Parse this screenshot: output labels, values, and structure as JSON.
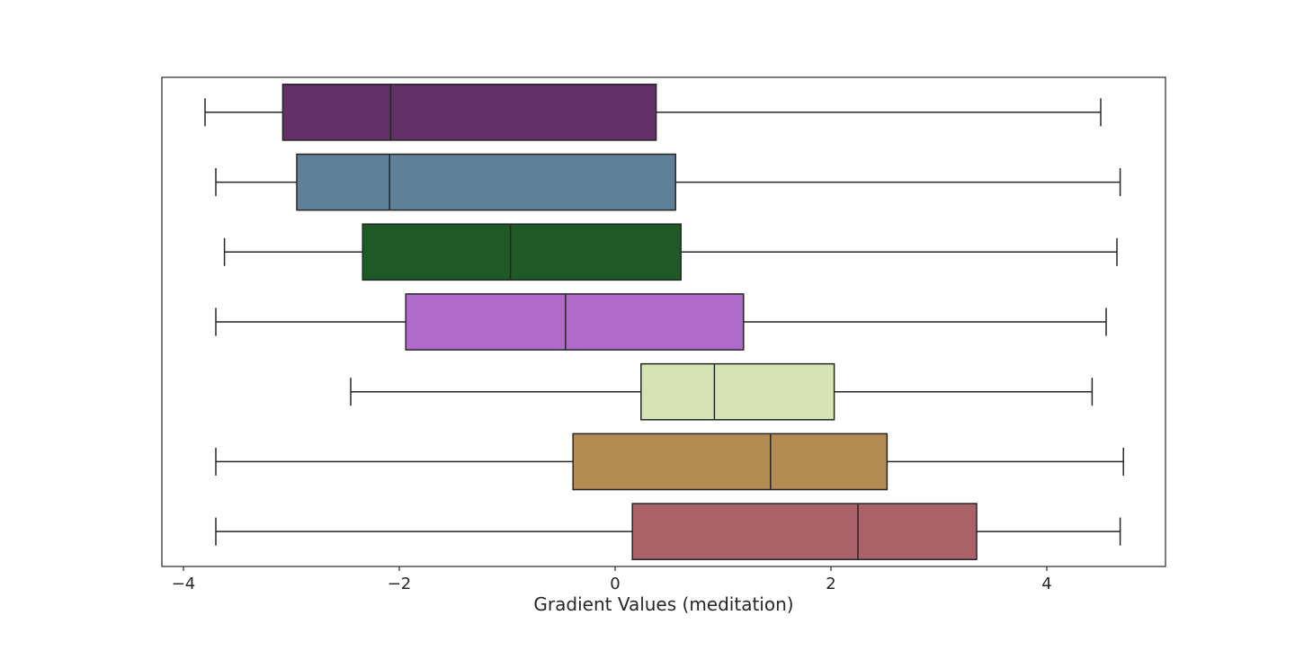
{
  "chart_data": {
    "type": "boxplot",
    "orientation": "horizontal",
    "xlabel": "Gradient Values (meditation)",
    "ylabel": "",
    "xlim": [
      -4.2,
      5.1
    ],
    "xticks": [
      -4,
      -2,
      0,
      2,
      4
    ],
    "xtick_labels": [
      "−4",
      "−2",
      "0",
      "2",
      "4"
    ],
    "grid": false,
    "boxes": [
      {
        "whisker_low": -3.8,
        "q1": -3.08,
        "median": -2.08,
        "q3": 0.38,
        "whisker_high": 4.5,
        "color": "#632f67"
      },
      {
        "whisker_low": -3.7,
        "q1": -2.95,
        "median": -2.09,
        "q3": 0.56,
        "whisker_high": 4.68,
        "color": "#5f8099"
      },
      {
        "whisker_low": -3.62,
        "q1": -2.34,
        "median": -0.97,
        "q3": 0.61,
        "whisker_high": 4.65,
        "color": "#1f5a26"
      },
      {
        "whisker_low": -3.7,
        "q1": -1.94,
        "median": -0.46,
        "q3": 1.19,
        "whisker_high": 4.55,
        "color": "#b06bca"
      },
      {
        "whisker_low": -2.45,
        "q1": 0.24,
        "median": 0.92,
        "q3": 2.03,
        "whisker_high": 4.42,
        "color": "#d5e4b5"
      },
      {
        "whisker_low": -3.7,
        "q1": -0.39,
        "median": 1.44,
        "q3": 2.52,
        "whisker_high": 4.71,
        "color": "#b38c53"
      },
      {
        "whisker_low": -3.7,
        "q1": 0.16,
        "median": 2.25,
        "q3": 3.35,
        "whisker_high": 4.68,
        "color": "#aa6269"
      }
    ]
  }
}
